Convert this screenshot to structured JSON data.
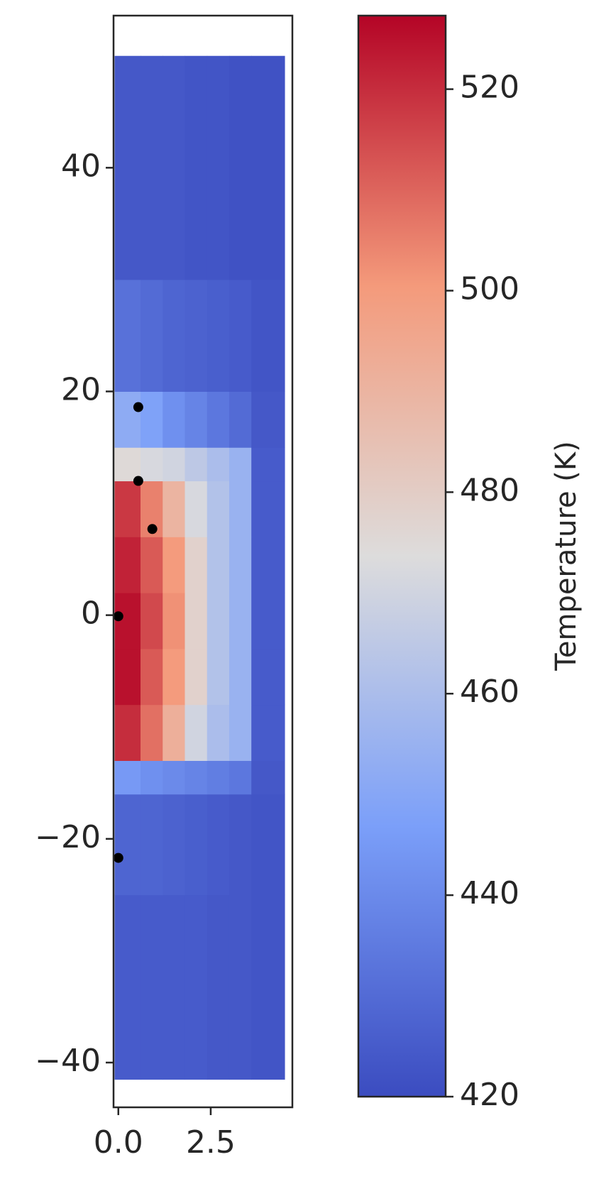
{
  "chart_data": {
    "type": "heatmap",
    "colorbar_label": "Temperature (K)",
    "colormap": [
      "#3b4cc0",
      "#7b9ff9",
      "#dddcdc",
      "#f49a7b",
      "#b40426"
    ],
    "clim": [
      420,
      527.3
    ],
    "cticks": [
      420,
      440,
      460,
      480,
      500,
      520
    ],
    "xlim": [
      -0.13,
      4.71
    ],
    "ylim": [
      -44,
      53.6
    ],
    "xticks": [
      {
        "value": 0,
        "label": "0.0"
      },
      {
        "value": 2.5,
        "label": "2.5"
      }
    ],
    "yticks": [
      {
        "value": -40,
        "label": "−40"
      },
      {
        "value": -20,
        "label": "−20"
      },
      0,
      20,
      40
    ],
    "x_edges": [
      -0.1,
      0.6,
      1.2,
      1.8,
      2.4,
      3.0,
      3.6,
      4.5
    ],
    "y_edges": [
      -41.5,
      -25,
      -16,
      -13,
      -8,
      -3,
      2,
      7,
      12,
      15,
      20,
      30,
      50
    ],
    "z": [
      [
        425,
        425,
        425,
        425,
        424,
        424,
        423
      ],
      [
        428,
        428,
        427,
        426,
        425,
        424,
        423
      ],
      [
        445,
        442,
        440,
        438,
        436,
        434,
        424
      ],
      [
        520,
        508,
        492,
        470,
        460,
        455,
        425
      ],
      [
        525,
        512,
        500,
        478,
        462,
        455,
        425
      ],
      [
        525,
        515,
        502,
        478,
        462,
        455,
        425
      ],
      [
        522,
        512,
        500,
        478,
        462,
        455,
        425
      ],
      [
        518,
        505,
        490,
        472,
        462,
        455,
        425
      ],
      [
        475,
        472,
        470,
        465,
        460,
        455,
        425
      ],
      [
        452,
        448,
        442,
        438,
        434,
        430,
        424
      ],
      [
        432,
        430,
        428,
        427,
        426,
        425,
        423
      ],
      [
        424,
        424,
        424,
        423,
        423,
        422,
        422
      ]
    ],
    "points": {
      "color": "#000000",
      "x": [
        0.54,
        0.54,
        0.92,
        0.0,
        0.0
      ],
      "y": [
        18.6,
        12,
        7.7,
        -0.1,
        -21.7
      ]
    }
  }
}
